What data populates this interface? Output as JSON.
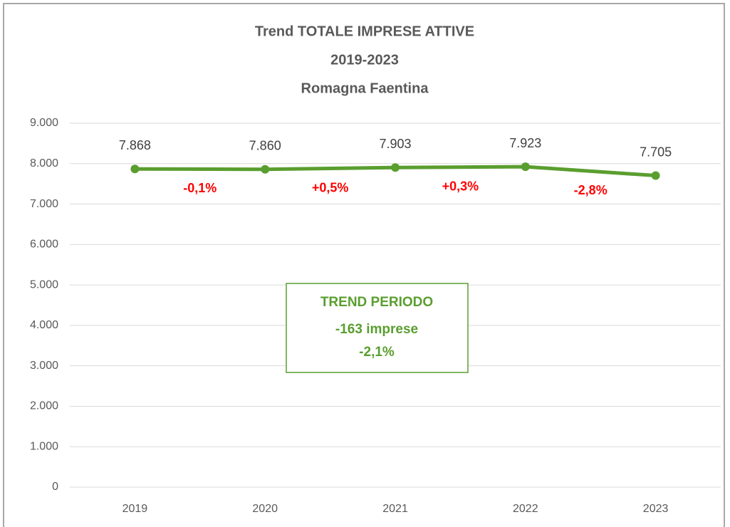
{
  "chart_data": {
    "type": "line",
    "title": [
      "Trend TOTALE IMPRESE ATTIVE",
      "2019-2023",
      "Romagna Faentina"
    ],
    "categories": [
      "2019",
      "2020",
      "2021",
      "2022",
      "2023"
    ],
    "series": [
      {
        "name": "Totale imprese attive",
        "color": "#5a9e2f",
        "values": [
          7868,
          7860,
          7903,
          7923,
          7705
        ],
        "value_labels": [
          "7.868",
          "7.860",
          "7.903",
          "7.923",
          "7.705"
        ]
      }
    ],
    "ylim": [
      0,
      9000
    ],
    "yticks": [
      0,
      {
        "value": 1000,
        "label": "1.000"
      },
      {
        "value": 2000,
        "label": "2.000"
      },
      {
        "value": 3000,
        "label": "3.000"
      },
      {
        "value": 4000,
        "label": "4.000"
      },
      {
        "value": 5000,
        "label": "5.000"
      },
      {
        "value": 6000,
        "label": "6.000"
      },
      {
        "value": 7000,
        "label": "7.000"
      },
      {
        "value": 8000,
        "label": "8.000"
      },
      {
        "value": 9000,
        "label": "9.000"
      }
    ],
    "grid": true,
    "annotations": [
      "-0,1%",
      "+0,5%",
      "+0,3%",
      "-2,8%"
    ],
    "annotation_color": "#ff0000",
    "summary_box": [
      "TREND PERIODO",
      "-163 imprese",
      "-2,1%"
    ]
  }
}
